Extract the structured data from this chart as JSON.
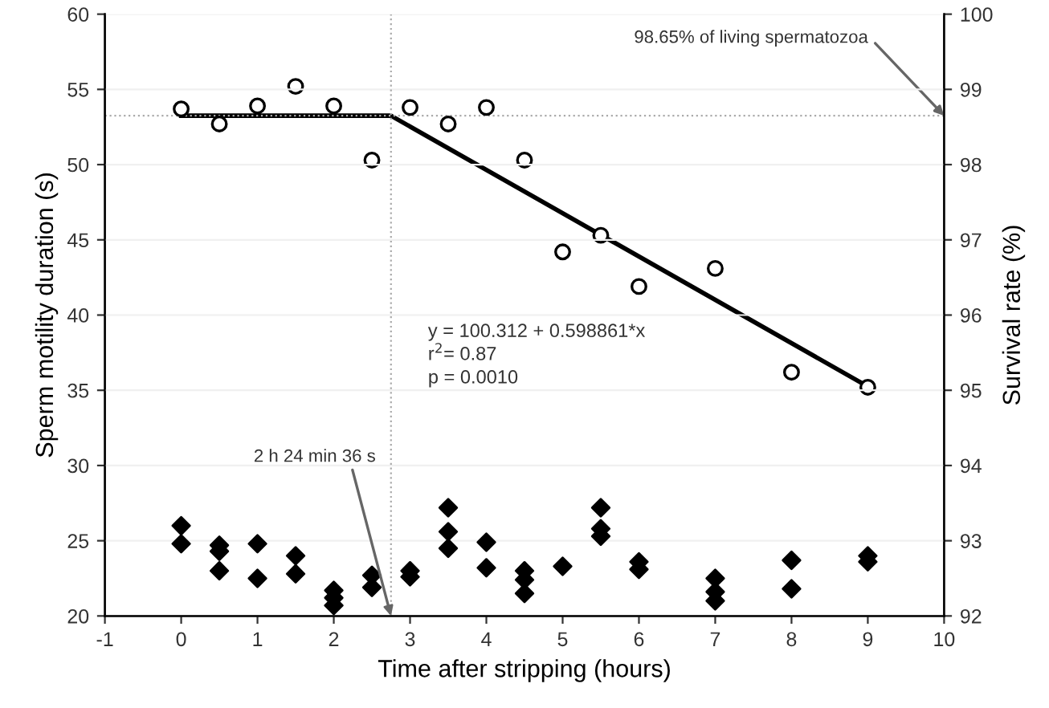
{
  "chart_data": {
    "type": "scatter",
    "xlabel": "Time after stripping (hours)",
    "ylabel": "Sperm motility duration (s)",
    "y2label": "Survival rate (%)",
    "xlim": [
      -1,
      10
    ],
    "xticks": [
      -1,
      0,
      1,
      2,
      3,
      4,
      5,
      6,
      7,
      8,
      9,
      10
    ],
    "ylim": [
      20,
      60
    ],
    "yticks": [
      20,
      25,
      30,
      35,
      40,
      45,
      50,
      55,
      60
    ],
    "y2lim": [
      92,
      100
    ],
    "y2ticks": [
      92,
      93,
      94,
      95,
      96,
      97,
      98,
      99,
      100
    ],
    "grid": "y",
    "legend": false,
    "series": [
      {
        "marker": "diamond",
        "color": "#000000",
        "x": [
          0,
          0,
          0.5,
          0.5,
          0.5,
          1,
          1,
          1.5,
          1.5,
          2,
          2,
          2,
          2.5,
          2.5,
          3,
          3,
          3.5,
          3.5,
          3.5,
          4,
          4,
          4.5,
          4.5,
          4.5,
          5,
          5.5,
          5.5,
          5.5,
          6,
          6,
          7,
          7,
          7,
          8,
          8,
          9,
          9
        ],
        "values": [
          26.0,
          24.8,
          24.7,
          24.3,
          23.0,
          24.8,
          22.5,
          24.0,
          22.8,
          21.7,
          21.2,
          20.7,
          22.7,
          21.9,
          23.0,
          22.6,
          27.2,
          25.6,
          24.5,
          24.9,
          23.2,
          23.0,
          22.4,
          21.5,
          23.3,
          27.2,
          25.8,
          25.3,
          23.6,
          23.1,
          22.5,
          21.6,
          21.0,
          23.7,
          21.8,
          24.0,
          23.6
        ]
      },
      {
        "marker": "circle",
        "color": "#000000",
        "axis": "y2",
        "x": [
          0,
          0.5,
          1,
          1.5,
          2,
          2.5,
          3,
          3.5,
          4,
          4.5,
          5,
          5.5,
          6,
          7,
          8,
          9
        ],
        "values": [
          98.74,
          98.54,
          98.78,
          99.04,
          98.78,
          98.06,
          98.76,
          98.54,
          98.76,
          98.06,
          96.84,
          97.06,
          96.38,
          96.62,
          95.24,
          95.04
        ]
      },
      {
        "type": "line",
        "marker": "none",
        "line_style": "solid",
        "color": "#000000",
        "axis": "y2",
        "x": [
          0,
          2.75,
          9
        ],
        "values": [
          98.65,
          98.65,
          95.05
        ]
      }
    ],
    "ref_lines": [
      {
        "axis": "x",
        "value": 2.75,
        "color": "#aaaaaa",
        "line_style": "dotted"
      },
      {
        "axis": "y2",
        "value": 98.65,
        "color": "#aaaaaa",
        "line_style": "dotted",
        "label": "98.65% of living spermatozoa"
      }
    ],
    "annotations": [
      {
        "text": "2 h 24 min 36 s",
        "x": 2.75,
        "y": 20
      },
      "y = 100.312 + 0.598861*x\nr$^{2}$= 0.87\np = 0.0010"
    ]
  }
}
